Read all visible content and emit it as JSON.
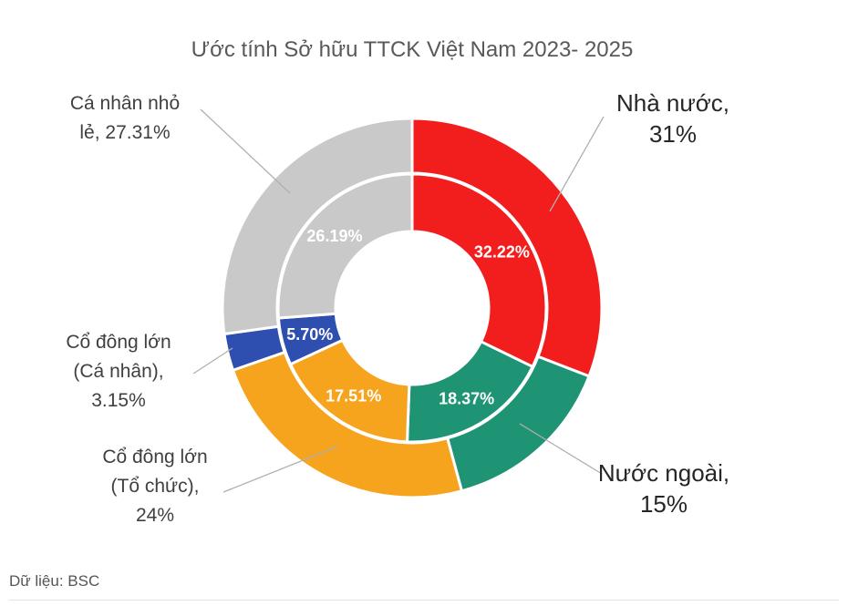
{
  "chart_data": {
    "type": "donut",
    "title": "Ước tính Sở hữu TTCK Việt Nam 2023- 2025",
    "categories": [
      "Nhà nước",
      "Nước ngoài",
      "Cổ đông lớn (Tổ chức)",
      "Cổ đông lớn (Cá nhân)",
      "Cá nhân nhỏ lẻ"
    ],
    "colors": [
      "#f21d1d",
      "#1f9474",
      "#f6a31e",
      "#2f4fb0",
      "#c9c9c9"
    ],
    "series": [
      {
        "ring": "outer",
        "values": [
          31,
          15,
          24,
          3.15,
          27.31
        ],
        "labels": [
          [
            "Nhà nước,",
            "31%"
          ],
          [
            "Nước ngoài,",
            "15%"
          ],
          [
            "Cổ đông lớn",
            "(Tổ chức),",
            "24%"
          ],
          [
            "Cổ đông lớn",
            "(Cá nhân),",
            "3.15%"
          ],
          [
            "Cá nhân nhỏ",
            "lẻ, 27.31%"
          ]
        ]
      },
      {
        "ring": "inner",
        "values": [
          32.22,
          18.37,
          17.51,
          5.7,
          26.19
        ],
        "labels": [
          "32.22%",
          "18.37%",
          "17.51%",
          "5.70%",
          "26.19%"
        ]
      }
    ]
  },
  "footer": {
    "source": "Dữ liệu: BSC"
  }
}
